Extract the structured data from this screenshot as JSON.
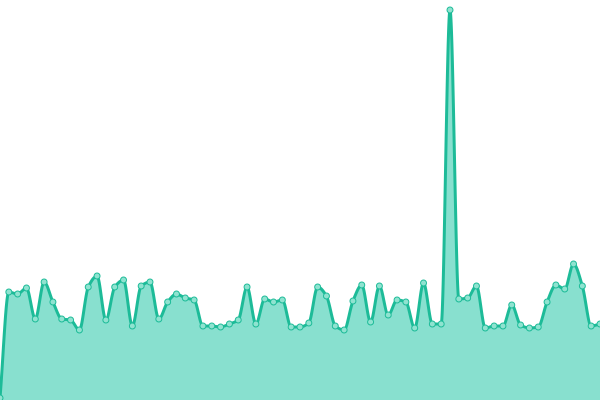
{
  "chart_data": {
    "type": "area",
    "title": "",
    "xlabel": "",
    "ylabel": "",
    "x": [
      0,
      1,
      2,
      3,
      4,
      5,
      6,
      7,
      8,
      9,
      10,
      11,
      12,
      13,
      14,
      15,
      16,
      17,
      18,
      19,
      20,
      21,
      22,
      23,
      24,
      25,
      26,
      27,
      28,
      29,
      30,
      31,
      32,
      33,
      34,
      35,
      36,
      37,
      38,
      39,
      40,
      41,
      42,
      43,
      44,
      45,
      46,
      47,
      48,
      49,
      50,
      51,
      52,
      53,
      54,
      55,
      56,
      57,
      58,
      59,
      60,
      61,
      62,
      63,
      64,
      65,
      66,
      67,
      68
    ],
    "values": [
      2,
      108,
      106,
      112,
      81,
      118,
      98,
      81,
      80,
      70,
      113,
      124,
      80,
      113,
      120,
      74,
      114,
      118,
      81,
      98,
      106,
      102,
      100,
      74,
      74,
      73,
      76,
      80,
      113,
      76,
      101,
      98,
      100,
      73,
      73,
      77,
      113,
      104,
      74,
      70,
      99,
      115,
      78,
      114,
      85,
      100,
      98,
      72,
      117,
      76,
      76,
      390,
      101,
      102,
      114,
      72,
      74,
      74,
      95,
      75,
      72,
      73,
      98,
      115,
      111,
      136,
      114,
      74,
      76
    ],
    "ylim": [
      0,
      400
    ],
    "grid": false,
    "axes_visible": false,
    "smooth": true,
    "markers": true,
    "colors": {
      "line": "#1dbb98",
      "fill": "#88e0cf",
      "marker_fill": "#8fe3d0"
    }
  }
}
